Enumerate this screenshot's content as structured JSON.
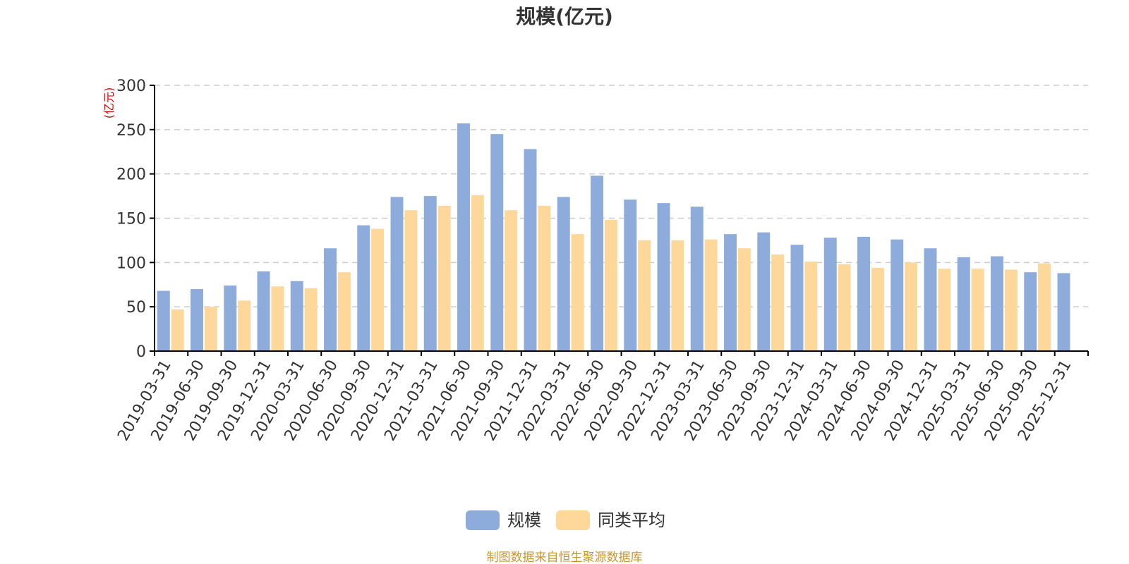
{
  "chart_data": {
    "type": "bar",
    "title": "规模(亿元)",
    "ylabel": "(亿元)",
    "ylim": [
      0,
      300
    ],
    "yticks": [
      0,
      50,
      100,
      150,
      200,
      250,
      300
    ],
    "grid": true,
    "legend_position": "bottom-center",
    "categories": [
      "2019-03-31",
      "2019-06-30",
      "2019-09-30",
      "2019-12-31",
      "2020-03-31",
      "2020-06-30",
      "2020-09-30",
      "2020-12-31",
      "2021-03-31",
      "2021-06-30",
      "2021-09-30",
      "2021-12-31",
      "2022-03-31",
      "2022-06-30",
      "2022-09-30",
      "2022-12-31",
      "2023-03-31",
      "2023-06-30",
      "2023-09-30",
      "2023-12-31",
      "2024-03-31",
      "2024-06-30",
      "2024-09-30",
      "2024-12-31",
      "2025-03-31",
      "2025-06-30",
      "2025-09-30",
      "2025-12-31"
    ],
    "series": [
      {
        "name": "规模",
        "color": "#8eacdb",
        "values": [
          68,
          70,
          74,
          90,
          79,
          116,
          142,
          174,
          175,
          257,
          245,
          228,
          174,
          198,
          171,
          167,
          163,
          132,
          134,
          120,
          128,
          129,
          126,
          116,
          106,
          107,
          89,
          88
        ]
      },
      {
        "name": "同类平均",
        "color": "#fed89a",
        "values": [
          47,
          50,
          57,
          73,
          71,
          89,
          138,
          159,
          164,
          176,
          159,
          164,
          132,
          148,
          125,
          125,
          126,
          116,
          109,
          101,
          98,
          94,
          100,
          93,
          93,
          92,
          99,
          null
        ]
      }
    ]
  },
  "source_note": "制图数据来自恒生聚源数据库"
}
